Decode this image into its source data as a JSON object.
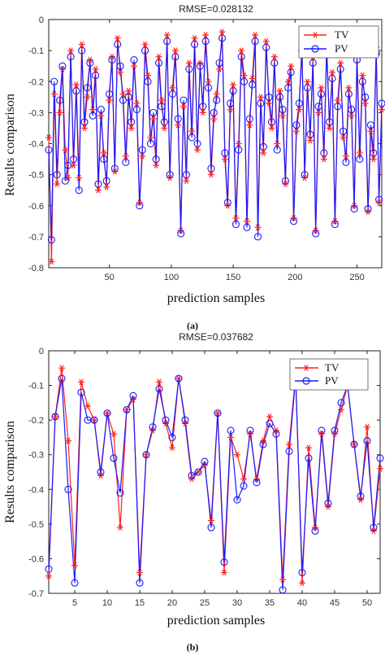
{
  "chart_data": [
    {
      "panel": "a",
      "type": "line",
      "caption": "(a)",
      "title": "RMSE=0.028132",
      "xlabel": "prediction samples",
      "ylabel": "Results comparison",
      "xlim": [
        1,
        270
      ],
      "ylim": [
        -0.8,
        0
      ],
      "xticks": [
        50,
        100,
        150,
        200,
        250
      ],
      "yticks": [
        -0.8,
        -0.7,
        -0.6,
        -0.5,
        -0.4,
        -0.3,
        -0.2,
        -0.1,
        0
      ],
      "ytick_labels": [
        "-0.8",
        "-0.7",
        "-0.6",
        "-0.5",
        "-0.4",
        "-0.3",
        "-0.2",
        "-0.1",
        "0"
      ],
      "xtick_labels": [
        "50",
        "100",
        "150",
        "200",
        "250"
      ],
      "legend_position": "top-right",
      "series": [
        {
          "name": "TV",
          "color": "#ff2020",
          "marker": "asterisk",
          "values": [
            -0.38,
            -0.78,
            -0.24,
            -0.53,
            -0.3,
            -0.16,
            -0.42,
            -0.51,
            -0.1,
            -0.47,
            -0.21,
            -0.51,
            -0.08,
            -0.35,
            -0.25,
            -0.13,
            -0.29,
            -0.16,
            -0.55,
            -0.31,
            -0.43,
            -0.54,
            -0.26,
            -0.12,
            -0.49,
            -0.06,
            -0.17,
            -0.24,
            -0.44,
            -0.23,
            -0.35,
            -0.15,
            -0.27,
            -0.59,
            -0.44,
            -0.08,
            -0.18,
            -0.38,
            -0.32,
            -0.47,
            -0.12,
            -0.26,
            -0.35,
            -0.05,
            -0.51,
            -0.22,
            -0.1,
            -0.34,
            -0.68,
            -0.28,
            -0.52,
            -0.14,
            -0.36,
            -0.06,
            -0.42,
            -0.14,
            -0.3,
            -0.05,
            -0.2,
            -0.5,
            -0.32,
            -0.24,
            -0.16,
            -0.04,
            -0.45,
            -0.6,
            -0.29,
            -0.21,
            -0.64,
            -0.4,
            -0.1,
            -0.18,
            -0.65,
            -0.34,
            -0.19,
            -0.05,
            -0.67,
            -0.25,
            -0.43,
            -0.07,
            -0.27,
            -0.35,
            -0.12,
            -0.4,
            -0.23,
            -0.31,
            -0.53,
            -0.2,
            -0.15,
            -0.64,
            -0.36,
            -0.29,
            -0.08,
            -0.51,
            -0.2,
            -0.39,
            -0.12,
            -0.68,
            -0.3,
            -0.22,
            -0.45,
            -0.08,
            -0.35,
            -0.17,
            -0.65,
            -0.26,
            -0.14,
            -0.38,
            -0.44,
            -0.22,
            -0.31,
            -0.6,
            -0.11,
            -0.43,
            -0.18,
            -0.27,
            -0.62,
            -0.36,
            -0.45,
            -0.09,
            -0.59,
            -0.29
          ]
        },
        {
          "name": "PV",
          "color": "#1a1aff",
          "marker": "circle",
          "values": [
            -0.42,
            -0.71,
            -0.2,
            -0.5,
            -0.26,
            -0.15,
            -0.52,
            -0.47,
            -0.12,
            -0.45,
            -0.23,
            -0.55,
            -0.1,
            -0.33,
            -0.22,
            -0.14,
            -0.31,
            -0.18,
            -0.53,
            -0.29,
            -0.45,
            -0.52,
            -0.24,
            -0.13,
            -0.48,
            -0.08,
            -0.15,
            -0.26,
            -0.46,
            -0.25,
            -0.33,
            -0.13,
            -0.29,
            -0.6,
            -0.42,
            -0.1,
            -0.2,
            -0.4,
            -0.3,
            -0.45,
            -0.14,
            -0.28,
            -0.33,
            -0.07,
            -0.5,
            -0.24,
            -0.12,
            -0.32,
            -0.69,
            -0.26,
            -0.5,
            -0.16,
            -0.38,
            -0.08,
            -0.4,
            -0.15,
            -0.28,
            -0.07,
            -0.22,
            -0.48,
            -0.3,
            -0.26,
            -0.14,
            -0.06,
            -0.43,
            -0.59,
            -0.27,
            -0.23,
            -0.66,
            -0.42,
            -0.12,
            -0.2,
            -0.67,
            -0.32,
            -0.21,
            -0.07,
            -0.7,
            -0.27,
            -0.41,
            -0.09,
            -0.25,
            -0.33,
            -0.14,
            -0.42,
            -0.25,
            -0.29,
            -0.52,
            -0.22,
            -0.17,
            -0.65,
            -0.34,
            -0.27,
            -0.1,
            -0.5,
            -0.22,
            -0.37,
            -0.14,
            -0.69,
            -0.28,
            -0.24,
            -0.43,
            -0.1,
            -0.33,
            -0.19,
            -0.66,
            -0.28,
            -0.16,
            -0.36,
            -0.46,
            -0.24,
            -0.29,
            -0.61,
            -0.13,
            -0.45,
            -0.2,
            -0.25,
            -0.61,
            -0.34,
            -0.43,
            -0.11,
            -0.58,
            -0.27
          ]
        }
      ]
    },
    {
      "panel": "b",
      "type": "line",
      "caption": "(b)",
      "title": "RMSE=0.037682",
      "xlabel": "prediction samples",
      "ylabel": "Results comparison",
      "xlim": [
        1,
        52
      ],
      "ylim": [
        -0.7,
        0
      ],
      "xticks": [
        5,
        10,
        15,
        20,
        25,
        30,
        35,
        40,
        45,
        50
      ],
      "yticks": [
        -0.7,
        -0.6,
        -0.5,
        -0.4,
        -0.3,
        -0.2,
        -0.1,
        0
      ],
      "ytick_labels": [
        "-0.7",
        "-0.6",
        "-0.5",
        "-0.4",
        "-0.3",
        "-0.2",
        "-0.1",
        "0"
      ],
      "xtick_labels": [
        "5",
        "10",
        "15",
        "20",
        "25",
        "30",
        "35",
        "40",
        "45",
        "50"
      ],
      "legend_position": "top-right",
      "series": [
        {
          "name": "TV",
          "color": "#ff2020",
          "marker": "asterisk",
          "values": [
            -0.65,
            -0.19,
            -0.05,
            -0.26,
            -0.62,
            -0.09,
            -0.16,
            -0.2,
            -0.36,
            -0.18,
            -0.24,
            -0.51,
            -0.17,
            -0.14,
            -0.64,
            -0.3,
            -0.23,
            -0.09,
            -0.21,
            -0.28,
            -0.08,
            -0.21,
            -0.37,
            -0.35,
            -0.33,
            -0.49,
            -0.18,
            -0.64,
            -0.25,
            -0.3,
            -0.37,
            -0.24,
            -0.37,
            -0.26,
            -0.19,
            -0.23,
            -0.66,
            -0.27,
            -0.07,
            -0.67,
            -0.28,
            -0.51,
            -0.24,
            -0.45,
            -0.24,
            -0.17,
            -0.1,
            -0.27,
            -0.43,
            -0.22,
            -0.52,
            -0.34
          ]
        },
        {
          "name": "PV",
          "color": "#1a1aff",
          "marker": "circle",
          "values": [
            -0.63,
            -0.19,
            -0.08,
            -0.4,
            -0.67,
            -0.12,
            -0.2,
            -0.2,
            -0.35,
            -0.18,
            -0.31,
            -0.41,
            -0.17,
            -0.13,
            -0.67,
            -0.3,
            -0.22,
            -0.11,
            -0.2,
            -0.25,
            -0.08,
            -0.2,
            -0.36,
            -0.35,
            -0.32,
            -0.51,
            -0.18,
            -0.61,
            -0.23,
            -0.43,
            -0.39,
            -0.23,
            -0.38,
            -0.27,
            -0.21,
            -0.24,
            -0.69,
            -0.29,
            -0.08,
            -0.64,
            -0.31,
            -0.52,
            -0.23,
            -0.44,
            -0.23,
            -0.15,
            -0.1,
            -0.27,
            -0.42,
            -0.26,
            -0.51,
            -0.31
          ]
        }
      ]
    }
  ]
}
